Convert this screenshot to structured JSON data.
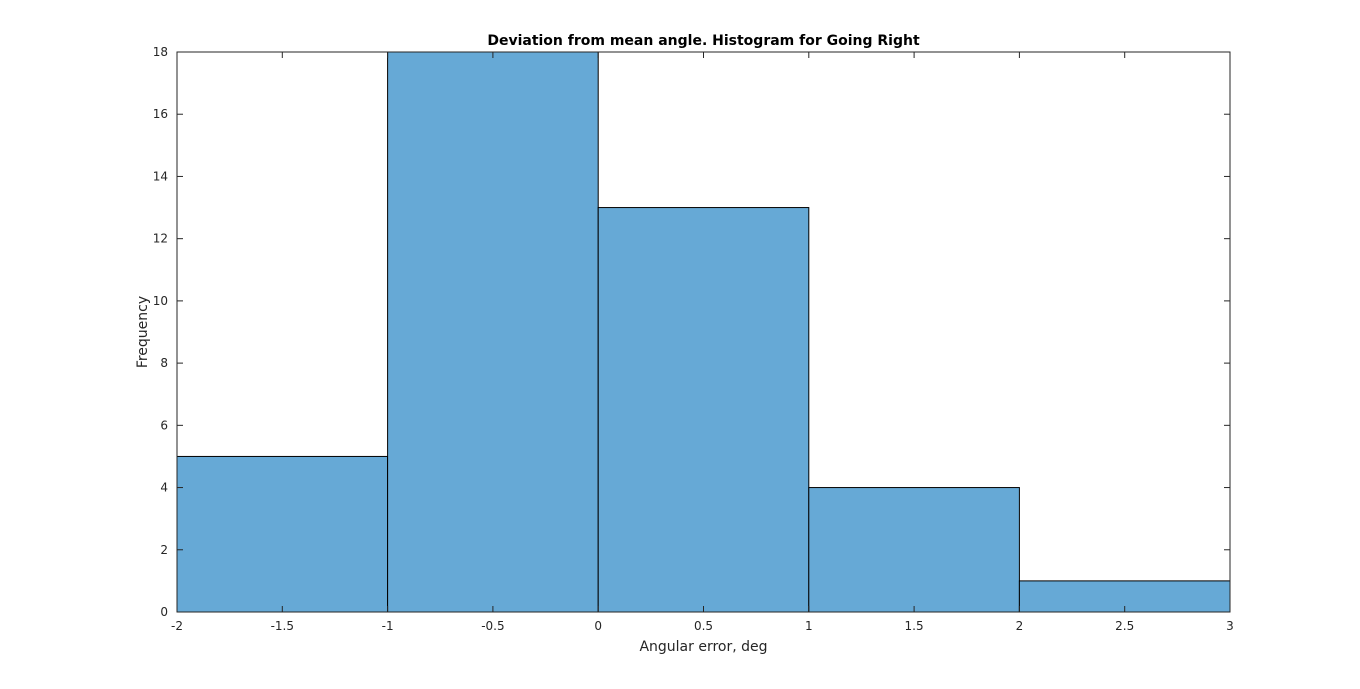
{
  "chart_data": {
    "type": "bar",
    "title": "Deviation from mean angle. Histogram for Going Right",
    "xlabel": "Angular error, deg",
    "ylabel": "Frequency",
    "bin_edges": [
      -2,
      -1,
      0,
      1,
      2,
      3
    ],
    "values": [
      5,
      18,
      13,
      4,
      1
    ],
    "xlim": [
      -2,
      3
    ],
    "ylim": [
      0,
      18
    ],
    "xticks": [
      -2,
      -1.5,
      -1,
      -0.5,
      0,
      0.5,
      1,
      1.5,
      2,
      2.5,
      3
    ],
    "xtick_labels": [
      "-2",
      "-1.5",
      "-1",
      "-0.5",
      "0",
      "0.5",
      "1",
      "1.5",
      "2",
      "2.5",
      "3"
    ],
    "yticks": [
      0,
      2,
      4,
      6,
      8,
      10,
      12,
      14,
      16,
      18
    ],
    "ytick_labels": [
      "0",
      "2",
      "4",
      "6",
      "8",
      "10",
      "12",
      "14",
      "16",
      "18"
    ],
    "bar_color": "#66a9d6",
    "grid": false,
    "legend": "none"
  }
}
